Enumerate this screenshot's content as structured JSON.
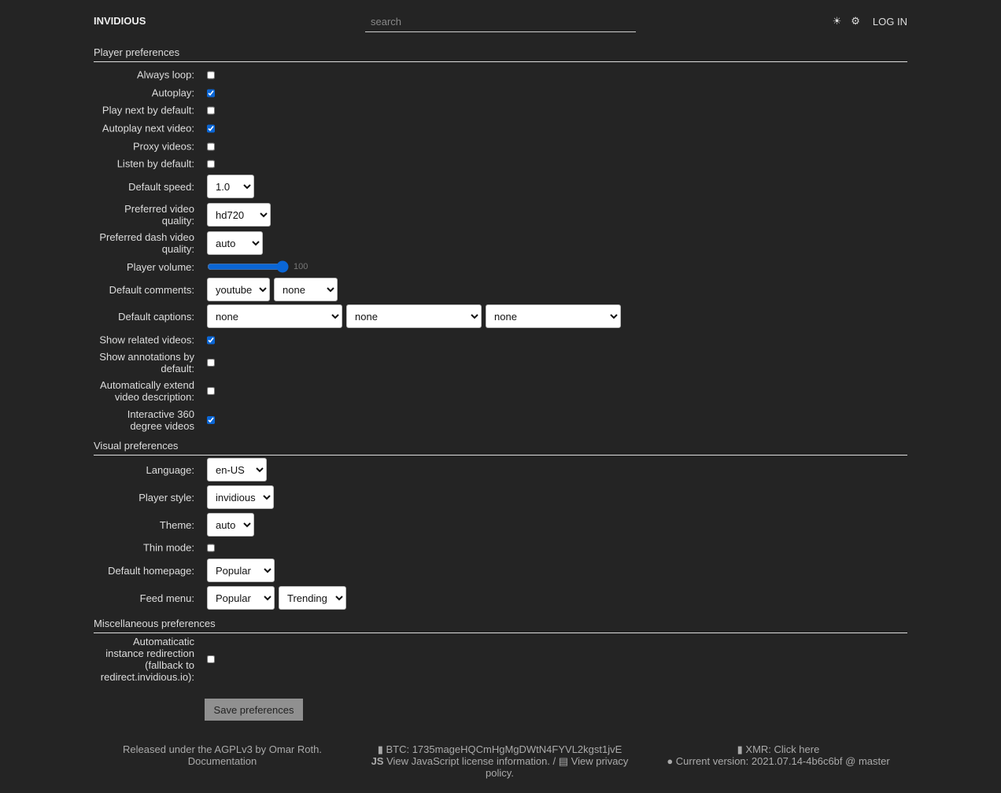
{
  "header": {
    "logo": "INVIDIOUS",
    "search_placeholder": "search",
    "theme_icon": "sun-icon",
    "prefs_icon": "gear-icon",
    "login": "LOG IN"
  },
  "player": {
    "title": "Player preferences",
    "always_loop": {
      "label": "Always loop:",
      "checked": false
    },
    "autoplay": {
      "label": "Autoplay:",
      "checked": true
    },
    "play_next": {
      "label": "Play next by default:",
      "checked": false
    },
    "autoplay_next": {
      "label": "Autoplay next video:",
      "checked": true
    },
    "proxy": {
      "label": "Proxy videos:",
      "checked": false
    },
    "listen": {
      "label": "Listen by default:",
      "checked": false
    },
    "speed": {
      "label": "Default speed:",
      "value": "1.0"
    },
    "quality": {
      "label": "Preferred video quality:",
      "value": "hd720"
    },
    "dash": {
      "label": "Preferred dash video quality:",
      "value": "auto"
    },
    "volume": {
      "label": "Player volume:",
      "value": "100"
    },
    "comments": {
      "label": "Default comments:",
      "values": [
        "youtube",
        "none"
      ]
    },
    "captions": {
      "label": "Default captions:",
      "values": [
        "none",
        "none",
        "none"
      ]
    },
    "related": {
      "label": "Show related videos:",
      "checked": true
    },
    "annotations": {
      "label": "Show annotations by default:",
      "checked": false
    },
    "extend": {
      "label": "Automatically extend video description:",
      "checked": false
    },
    "vr": {
      "label": "Interactive 360 degree videos",
      "checked": true
    }
  },
  "visual": {
    "title": "Visual preferences",
    "language": {
      "label": "Language:",
      "value": "en-US"
    },
    "player_style": {
      "label": "Player style:",
      "value": "invidious"
    },
    "theme": {
      "label": "Theme:",
      "value": "auto"
    },
    "thin": {
      "label": "Thin mode:",
      "checked": false
    },
    "homepage": {
      "label": "Default homepage:",
      "value": "Popular"
    },
    "feed": {
      "label": "Feed menu:",
      "values": [
        "Popular",
        "Trending"
      ]
    }
  },
  "misc": {
    "title": "Miscellaneous preferences",
    "redirect": {
      "label": "Automaticatic instance redirection (fallback to redirect.invidious.io):",
      "checked": false
    }
  },
  "save_label": "Save preferences",
  "footer": {
    "license": "Released under the AGPLv3 by Omar Roth.",
    "docs": "Documentation",
    "btc": "BTC: 1735mageHQCmHgMgDWtN4FYVL2kgst1jvE",
    "js_license": "View JavaScript license information.",
    "sep": " / ",
    "privacy": "View privacy policy.",
    "xmr": "XMR: Click here",
    "version": "Current version: 2021.07.14-4b6c6bf @ master"
  }
}
